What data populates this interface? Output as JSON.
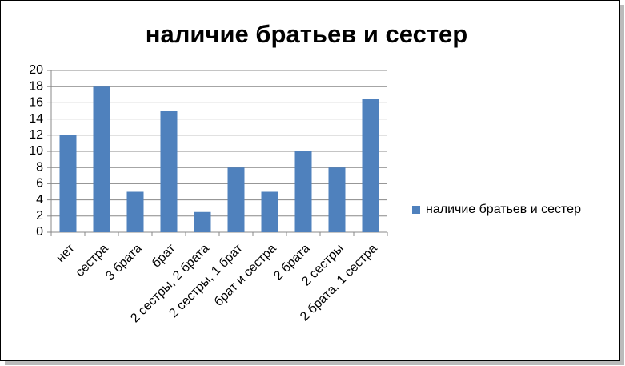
{
  "chart_data": {
    "type": "bar",
    "title": "наличие братьев и сестер",
    "categories": [
      "нет",
      "сестра",
      "3 брата",
      "брат",
      "2 сестры, 2 брата",
      "2 сестры, 1 брат",
      "брат и сестра",
      "2 брата",
      "2 сестры",
      "2 брата, 1 сестра"
    ],
    "series": [
      {
        "name": "наличие братьев и сестер",
        "color": "#4f81bd",
        "values": [
          12,
          18,
          5,
          15,
          2.5,
          8,
          5,
          10,
          8,
          16.5
        ]
      }
    ],
    "ylim": [
      0,
      20
    ],
    "yticks": [
      0,
      2,
      4,
      6,
      8,
      10,
      12,
      14,
      16,
      18,
      20
    ],
    "grid": true,
    "legend": "right"
  }
}
